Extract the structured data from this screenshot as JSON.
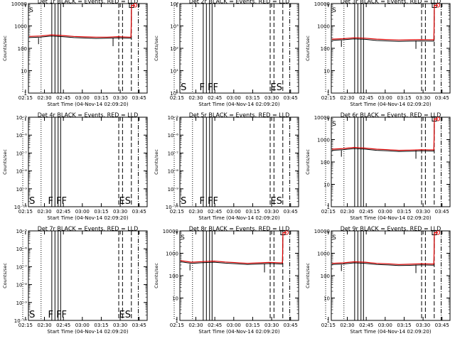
{
  "figure": {
    "xlabel": "Start Time (04-Nov-14 02:09:20)",
    "ylabel": "Counts/sec"
  },
  "chart_data": [
    {
      "type": "line",
      "title": "Det 1r  BLACK = Events, RED = LLD",
      "scale": "log",
      "ylim_exp": [
        0,
        4
      ],
      "yticks": [
        {
          "e": 0,
          "label": "1"
        },
        {
          "e": 1,
          "label": "10"
        },
        {
          "e": 2,
          "label": "100"
        },
        {
          "e": 3,
          "label": "1000"
        },
        {
          "e": 4,
          "label": "10000"
        }
      ],
      "flag_labels": [
        "S"
      ],
      "series": [
        {
          "color": "#000000",
          "level": [
            2.48,
            2.5,
            2.55,
            2.52,
            2.48,
            2.46,
            2.44,
            2.45,
            2.47,
            2.45
          ]
        },
        {
          "color": "#dd0000",
          "level": [
            2.53,
            2.55,
            2.6,
            2.57,
            2.53,
            2.51,
            2.5,
            2.5,
            2.52,
            2.5
          ]
        }
      ],
      "jump": true
    },
    {
      "type": "line",
      "title": "Det 2r  BLACK = Events, RED = LLD",
      "scale": "log",
      "ylim_exp": [
        0,
        4
      ],
      "yticks": [
        {
          "e": 0,
          "label": "10⁰"
        },
        {
          "e": 1,
          "label": "10¹"
        },
        {
          "e": 2,
          "label": "10²"
        },
        {
          "e": 3,
          "label": "10³"
        },
        {
          "e": 4,
          "label": "10⁴"
        }
      ],
      "flag_labels": [
        "S",
        "F",
        "FF",
        "ES"
      ],
      "series": [],
      "jump": false
    },
    {
      "type": "line",
      "title": "Det 3r  BLACK = Events, RED = LLD",
      "scale": "log",
      "ylim_exp": [
        0,
        4
      ],
      "yticks": [
        {
          "e": 0,
          "label": "1"
        },
        {
          "e": 1,
          "label": "10"
        },
        {
          "e": 2,
          "label": "100"
        },
        {
          "e": 3,
          "label": "1000"
        },
        {
          "e": 4,
          "label": "10000"
        }
      ],
      "flag_labels": [
        "S"
      ],
      "series": [
        {
          "color": "#000000",
          "level": [
            2.36,
            2.38,
            2.42,
            2.4,
            2.35,
            2.33,
            2.31,
            2.32,
            2.33,
            2.32
          ]
        },
        {
          "color": "#dd0000",
          "level": [
            2.41,
            2.43,
            2.47,
            2.45,
            2.41,
            2.39,
            2.37,
            2.38,
            2.39,
            2.38
          ]
        }
      ],
      "jump": true
    },
    {
      "type": "line",
      "title": "Det 4r  BLACK = Events, RED = LLD",
      "scale": "log",
      "ylim_exp": [
        -10,
        -5
      ],
      "yticks": [
        {
          "e": -10,
          "label": "10⁻¹⁰"
        },
        {
          "e": -9,
          "label": "10⁻⁹"
        },
        {
          "e": -8,
          "label": "10⁻⁸"
        },
        {
          "e": -7,
          "label": "10⁻⁷"
        },
        {
          "e": -6,
          "label": "10⁻⁶"
        },
        {
          "e": -5,
          "label": "10⁻⁵"
        }
      ],
      "flag_labels": [
        "S",
        "F",
        "FF",
        "ES"
      ],
      "series": [],
      "jump": false
    },
    {
      "type": "line",
      "title": "Det 5r  BLACK = Events, RED = LLD",
      "scale": "log",
      "ylim_exp": [
        -10,
        -5
      ],
      "yticks": [
        {
          "e": -10,
          "label": "10⁻¹⁰"
        },
        {
          "e": -9,
          "label": "10⁻⁹"
        },
        {
          "e": -8,
          "label": "10⁻⁸"
        },
        {
          "e": -7,
          "label": "10⁻⁷"
        },
        {
          "e": -6,
          "label": "10⁻⁶"
        },
        {
          "e": -5,
          "label": "10⁻⁵"
        }
      ],
      "flag_labels": [
        "S",
        "F",
        "FF",
        "ES"
      ],
      "series": [],
      "jump": false
    },
    {
      "type": "line",
      "title": "Det 6r  BLACK = Events, RED = LLD",
      "scale": "log",
      "ylim_exp": [
        0,
        4
      ],
      "yticks": [
        {
          "e": 0,
          "label": "1"
        },
        {
          "e": 1,
          "label": "10"
        },
        {
          "e": 2,
          "label": "100"
        },
        {
          "e": 3,
          "label": "1000"
        },
        {
          "e": 4,
          "label": "10000"
        }
      ],
      "flag_labels": [
        "S"
      ],
      "series": [
        {
          "color": "#000000",
          "level": [
            2.52,
            2.55,
            2.6,
            2.57,
            2.52,
            2.5,
            2.47,
            2.48,
            2.5,
            2.49
          ]
        },
        {
          "color": "#dd0000",
          "level": [
            2.57,
            2.6,
            2.65,
            2.62,
            2.57,
            2.55,
            2.52,
            2.53,
            2.55,
            2.54
          ]
        }
      ],
      "jump": true
    },
    {
      "type": "line",
      "title": "Det 7r  BLACK = Events, RED = LLD",
      "scale": "log",
      "ylim_exp": [
        -10,
        -5
      ],
      "yticks": [
        {
          "e": -10,
          "label": "10⁻¹⁰"
        },
        {
          "e": -9,
          "label": "10⁻⁹"
        },
        {
          "e": -8,
          "label": "10⁻⁸"
        },
        {
          "e": -7,
          "label": "10⁻⁷"
        },
        {
          "e": -6,
          "label": "10⁻⁶"
        },
        {
          "e": -5,
          "label": "10⁻⁵"
        }
      ],
      "flag_labels": [
        "S",
        "F",
        "FF",
        "ES"
      ],
      "series": [],
      "jump": false
    },
    {
      "type": "line",
      "title": "Det 8r  BLACK = Events, RED = LLD",
      "scale": "log",
      "ylim_exp": [
        0,
        4
      ],
      "yticks": [
        {
          "e": 0,
          "label": "1"
        },
        {
          "e": 1,
          "label": "10"
        },
        {
          "e": 2,
          "label": "100"
        },
        {
          "e": 3,
          "label": "1000"
        },
        {
          "e": 4,
          "label": "10000"
        }
      ],
      "flag_labels": [
        "S"
      ],
      "series": [
        {
          "color": "#000000",
          "level": [
            2.62,
            2.55,
            2.58,
            2.6,
            2.56,
            2.53,
            2.5,
            2.52,
            2.54,
            2.52
          ]
        },
        {
          "color": "#dd0000",
          "level": [
            2.67,
            2.6,
            2.63,
            2.65,
            2.61,
            2.58,
            2.55,
            2.57,
            2.59,
            2.57
          ]
        }
      ],
      "jump": true
    },
    {
      "type": "line",
      "title": "Det 9r  BLACK = Events, RED = LLD",
      "scale": "log",
      "ylim_exp": [
        0,
        4
      ],
      "yticks": [
        {
          "e": 0,
          "label": "1"
        },
        {
          "e": 1,
          "label": "10"
        },
        {
          "e": 2,
          "label": "100"
        },
        {
          "e": 3,
          "label": "1000"
        },
        {
          "e": 4,
          "label": "10000"
        }
      ],
      "flag_labels": [
        "S"
      ],
      "series": [
        {
          "color": "#000000",
          "level": [
            2.5,
            2.52,
            2.57,
            2.55,
            2.5,
            2.48,
            2.45,
            2.46,
            2.48,
            2.47
          ]
        },
        {
          "color": "#dd0000",
          "level": [
            2.55,
            2.57,
            2.62,
            2.6,
            2.55,
            2.53,
            2.5,
            2.51,
            2.53,
            2.52
          ]
        }
      ],
      "jump": true
    }
  ],
  "x_ticks": [
    "02:15",
    "02:30",
    "02:45",
    "03:00",
    "03:15",
    "03:30",
    "03:45"
  ]
}
